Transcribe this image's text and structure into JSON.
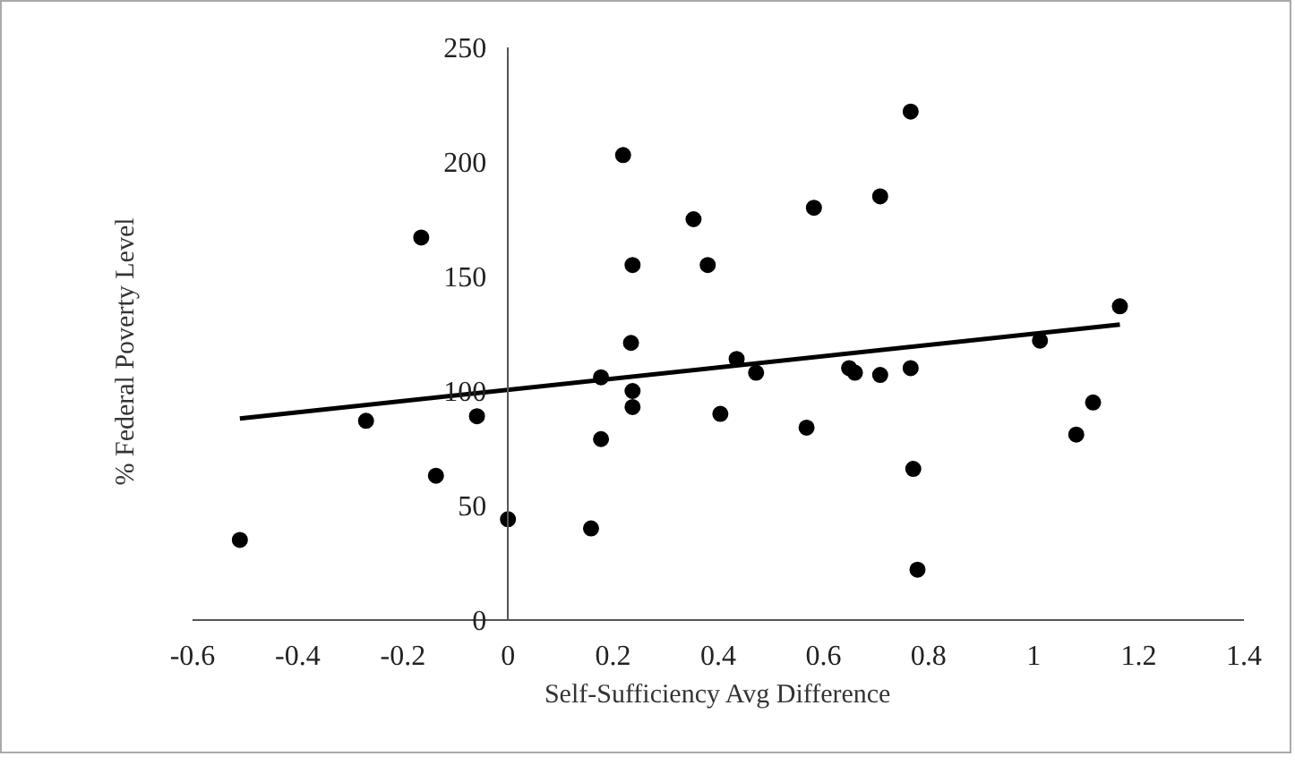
{
  "chart_data": {
    "type": "scatter",
    "xlabel": "Self-Sufficiency Avg Difference",
    "ylabel": "% Federal Poverty Level",
    "xlim": [
      -0.6,
      1.4
    ],
    "ylim": [
      0,
      250
    ],
    "xticks": [
      -0.6,
      -0.4,
      -0.2,
      0,
      0.2,
      0.4,
      0.6,
      0.8,
      1,
      1.2,
      1.4
    ],
    "yticks": [
      0,
      50,
      100,
      150,
      200,
      250
    ],
    "grid": false,
    "series": [
      {
        "marker": "circle",
        "color": "#000000",
        "x": [
          -0.51,
          -0.27,
          -0.165,
          -0.137,
          -0.059,
          0.0,
          0.158,
          0.177,
          0.177,
          0.219,
          0.237,
          0.234,
          0.237,
          0.237,
          0.353,
          0.38,
          0.435,
          0.404,
          0.472,
          0.582,
          0.568,
          0.649,
          0.66,
          0.708,
          0.708,
          0.766,
          0.766,
          0.771,
          0.779,
          1.012,
          1.081,
          1.113,
          1.164
        ],
        "values": [
          35,
          87,
          167,
          63,
          89,
          44,
          40,
          79,
          106,
          203,
          155,
          121,
          100,
          93,
          175,
          155,
          114,
          90,
          108,
          180,
          84,
          110,
          108,
          185,
          107,
          222,
          110,
          66,
          22,
          122,
          81,
          95,
          137
        ]
      },
      {
        "type": "line",
        "color": "#000000",
        "x": [
          -0.51,
          1.164
        ],
        "values": [
          88,
          129
        ],
        "line_style": "solid"
      }
    ]
  }
}
